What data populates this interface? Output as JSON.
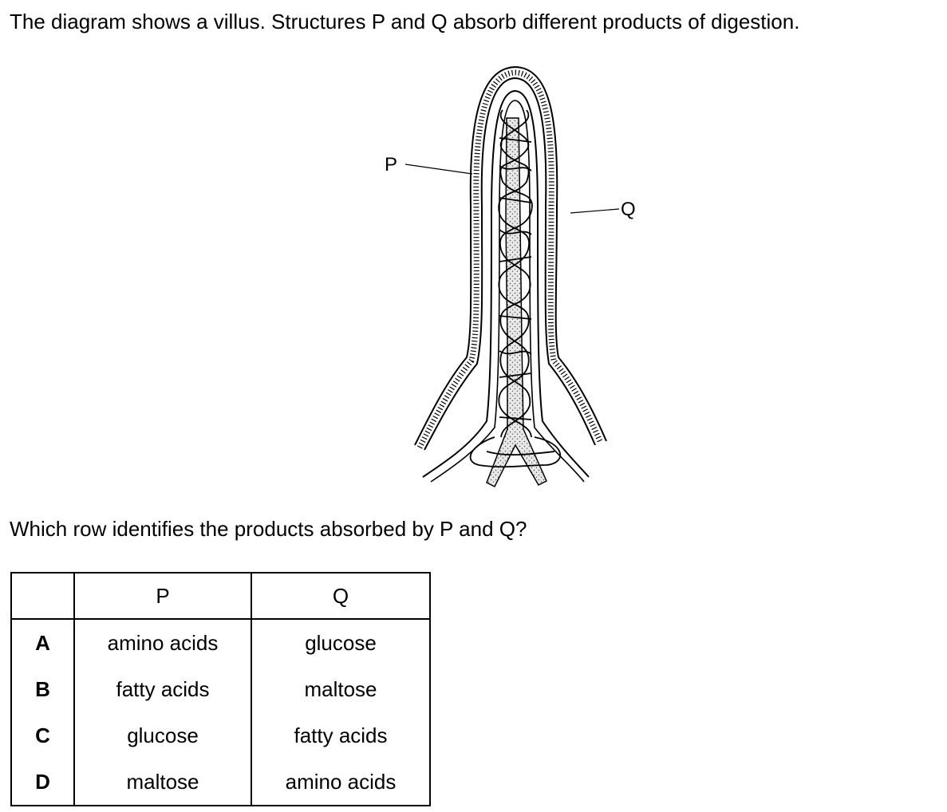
{
  "intro_text": "The diagram shows a villus. Structures P and Q absorb different products of digestion.",
  "diagram": {
    "label_p": "P",
    "label_q": "Q"
  },
  "question_text": "Which row identifies the products absorbed by P and Q?",
  "table": {
    "headers": [
      "",
      "P",
      "Q"
    ],
    "rows": [
      {
        "key": "A",
        "p": "amino acids",
        "q": "glucose"
      },
      {
        "key": "B",
        "p": "fatty acids",
        "q": "maltose"
      },
      {
        "key": "C",
        "p": "glucose",
        "q": "fatty acids"
      },
      {
        "key": "D",
        "p": "maltose",
        "q": "amino acids"
      }
    ]
  }
}
